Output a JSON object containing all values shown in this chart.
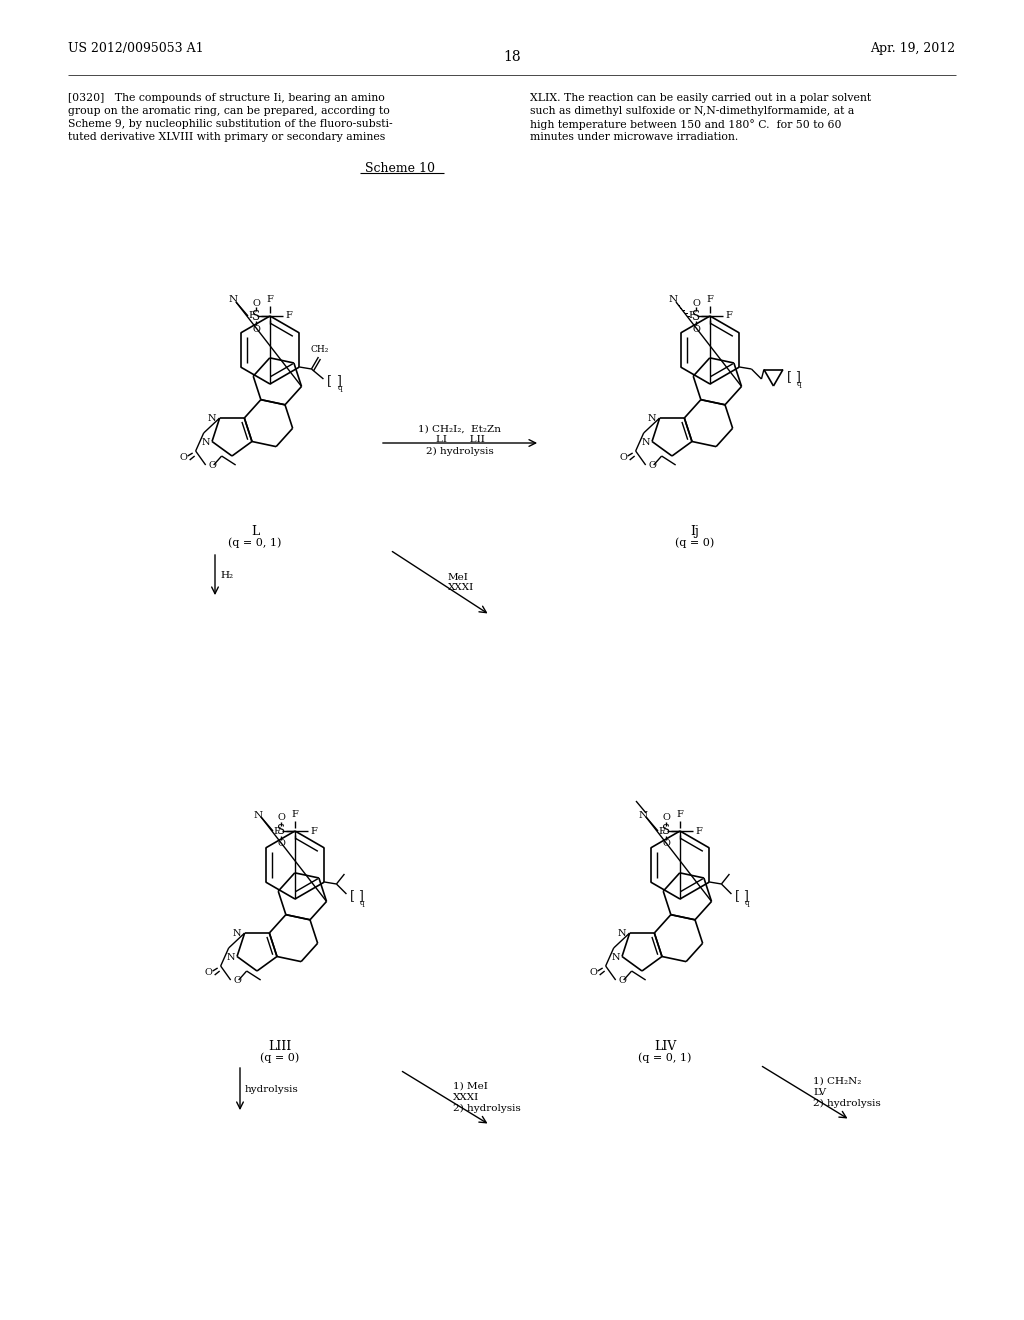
{
  "page_number": "18",
  "patent_number": "US 2012/0095053 A1",
  "patent_date": "Apr. 19, 2012",
  "col1_lines": [
    "[0320]   The compounds of structure Ii, bearing an amino",
    "group on the aromatic ring, can be prepared, according to",
    "Scheme 9, by nucleophilic substitution of the fluoro-substi-",
    "tuted derivative XLVIII with primary or secondary amines"
  ],
  "col2_lines": [
    "XLIX. The reaction can be easily carried out in a polar solvent",
    "such as dimethyl sulfoxide or N,N-dimethylformamide, at a",
    "high temperature between 150 and 180° C.  for 50 to 60",
    "minutes under microwave irradiation."
  ],
  "scheme_label": "Scheme 10",
  "bg": "#ffffff"
}
